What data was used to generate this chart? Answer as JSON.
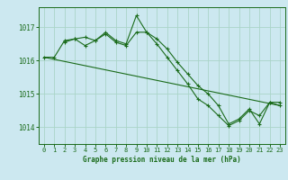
{
  "title": "Graphe pression niveau de la mer (hPa)",
  "bg_color": "#cce8f0",
  "grid_color": "#aad4c8",
  "line_color": "#1a6b1a",
  "xlim": [
    -0.5,
    23.5
  ],
  "ylim": [
    1013.5,
    1017.6
  ],
  "yticks": [
    1014,
    1015,
    1016,
    1017
  ],
  "xticks": [
    0,
    1,
    2,
    3,
    4,
    5,
    6,
    7,
    8,
    9,
    10,
    11,
    12,
    13,
    14,
    15,
    16,
    17,
    18,
    19,
    20,
    21,
    22,
    23
  ],
  "series": [
    {
      "x": [
        0,
        1,
        2,
        3,
        4,
        5,
        6,
        7,
        8,
        9,
        10,
        11,
        12,
        13,
        14,
        15,
        16,
        17,
        18,
        19,
        20,
        21,
        22,
        23
      ],
      "y": [
        1016.1,
        1016.1,
        1016.6,
        1016.65,
        1016.7,
        1016.6,
        1016.85,
        1016.6,
        1016.5,
        1017.35,
        1016.85,
        1016.65,
        1016.35,
        1015.95,
        1015.6,
        1015.25,
        1015.0,
        1014.65,
        1014.1,
        1014.25,
        1014.55,
        1014.1,
        1014.75,
        1014.75
      ]
    },
    {
      "x": [
        0,
        23
      ],
      "y": [
        1016.1,
        1014.65
      ]
    },
    {
      "x": [
        2,
        3,
        4,
        5,
        6,
        7,
        8,
        9,
        10,
        11,
        12,
        13,
        14,
        15,
        16,
        17,
        18,
        19,
        20,
        21,
        22,
        23
      ],
      "y": [
        1016.55,
        1016.65,
        1016.45,
        1016.6,
        1016.8,
        1016.55,
        1016.45,
        1016.85,
        1016.85,
        1016.5,
        1016.1,
        1015.7,
        1015.3,
        1014.85,
        1014.65,
        1014.35,
        1014.05,
        1014.2,
        1014.5,
        1014.35,
        1014.75,
        1014.65
      ]
    }
  ]
}
